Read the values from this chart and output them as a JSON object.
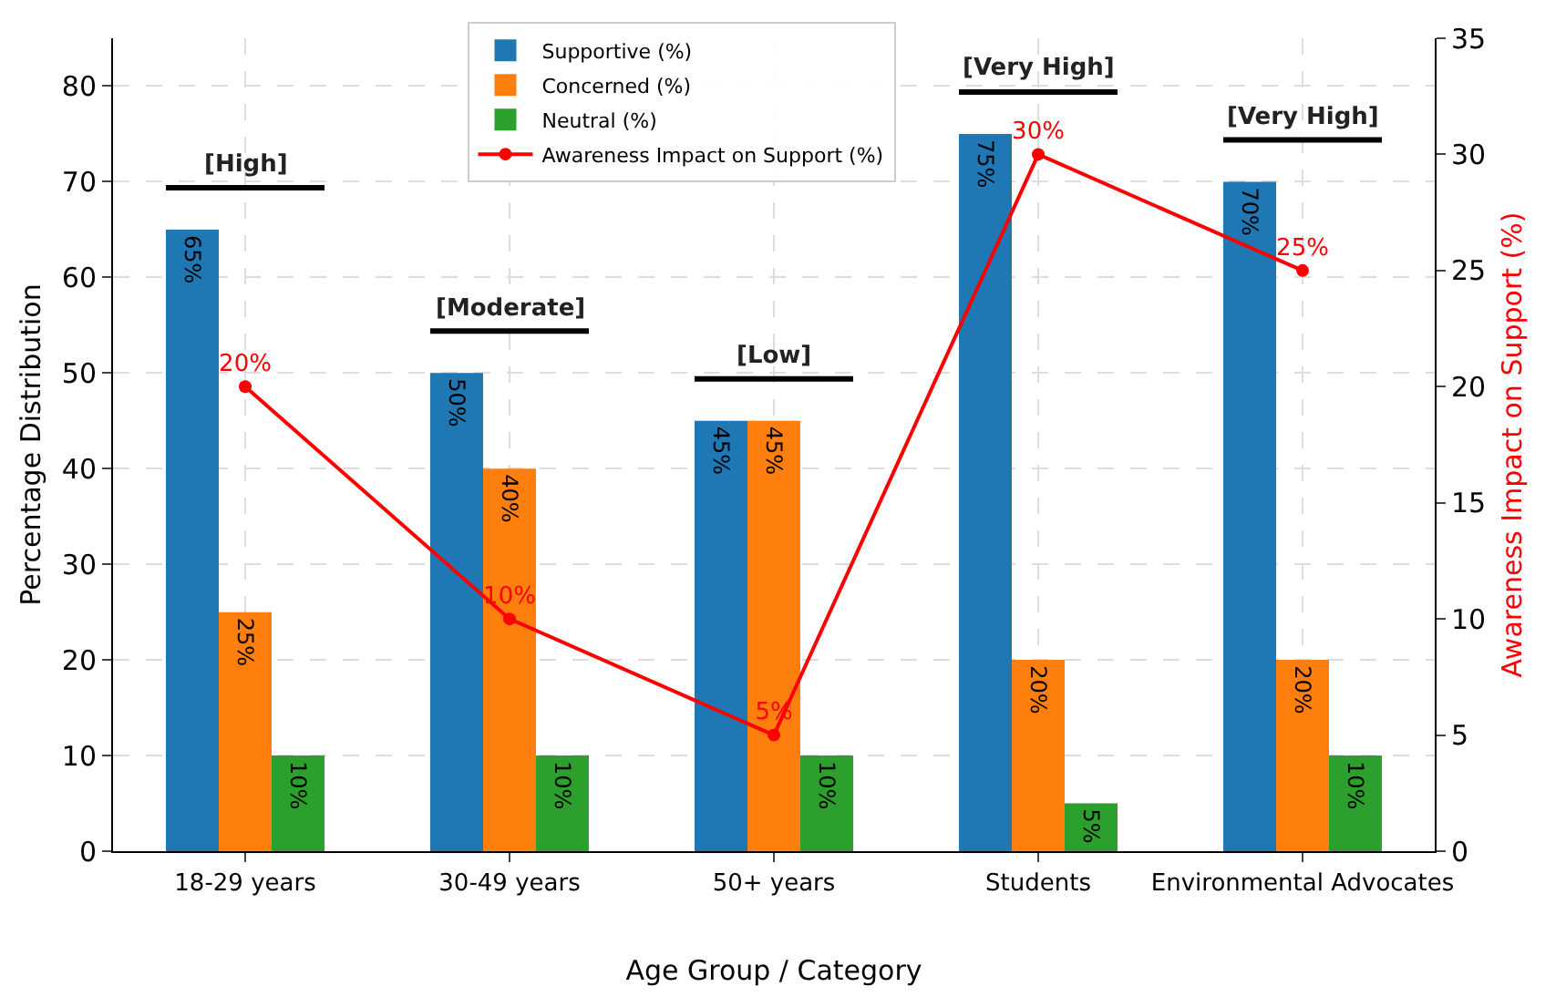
{
  "chart_data": {
    "type": "bar",
    "xlabel": "Age Group / Category",
    "ylabel": "Percentage Distribution",
    "y2label": "Awareness Impact on Support (%)",
    "categories": [
      "18-29 years",
      "30-49 years",
      "50+ years",
      "Students",
      "Environmental Advocates"
    ],
    "series": [
      {
        "name": "Supportive (%)",
        "color": "#1f77b4",
        "values": [
          65,
          50,
          45,
          75,
          70
        ],
        "value_labels": [
          "65%",
          "50%",
          "45%",
          "75%",
          "70%"
        ]
      },
      {
        "name": "Concerned (%)",
        "color": "#ff7f0e",
        "values": [
          25,
          40,
          45,
          20,
          20
        ],
        "value_labels": [
          "25%",
          "40%",
          "45%",
          "20%",
          "20%"
        ]
      },
      {
        "name": "Neutral (%)",
        "color": "#2ca02c",
        "values": [
          10,
          10,
          10,
          5,
          10
        ],
        "value_labels": [
          "10%",
          "10%",
          "10%",
          "5%",
          "10%"
        ]
      },
      {
        "name": "Awareness Impact on Support (%)",
        "type": "line",
        "axis": "y2",
        "color": "#ff0000",
        "values": [
          20,
          10,
          5,
          30,
          25
        ],
        "value_labels": [
          "20%",
          "10%",
          "5%",
          "30%",
          "25%"
        ]
      }
    ],
    "ylim": [
      0,
      85
    ],
    "yticks": [
      0,
      10,
      20,
      30,
      40,
      50,
      60,
      70,
      80
    ],
    "y2lim": [
      0,
      35
    ],
    "y2ticks": [
      0,
      5,
      10,
      15,
      20,
      25,
      30,
      35
    ],
    "annotations": [
      "[High]",
      "[Moderate]",
      "[Low]",
      "[Very High]",
      "[Very High]"
    ],
    "grid": true,
    "legend": "top",
    "marker": "circle",
    "line_style": "solid"
  }
}
